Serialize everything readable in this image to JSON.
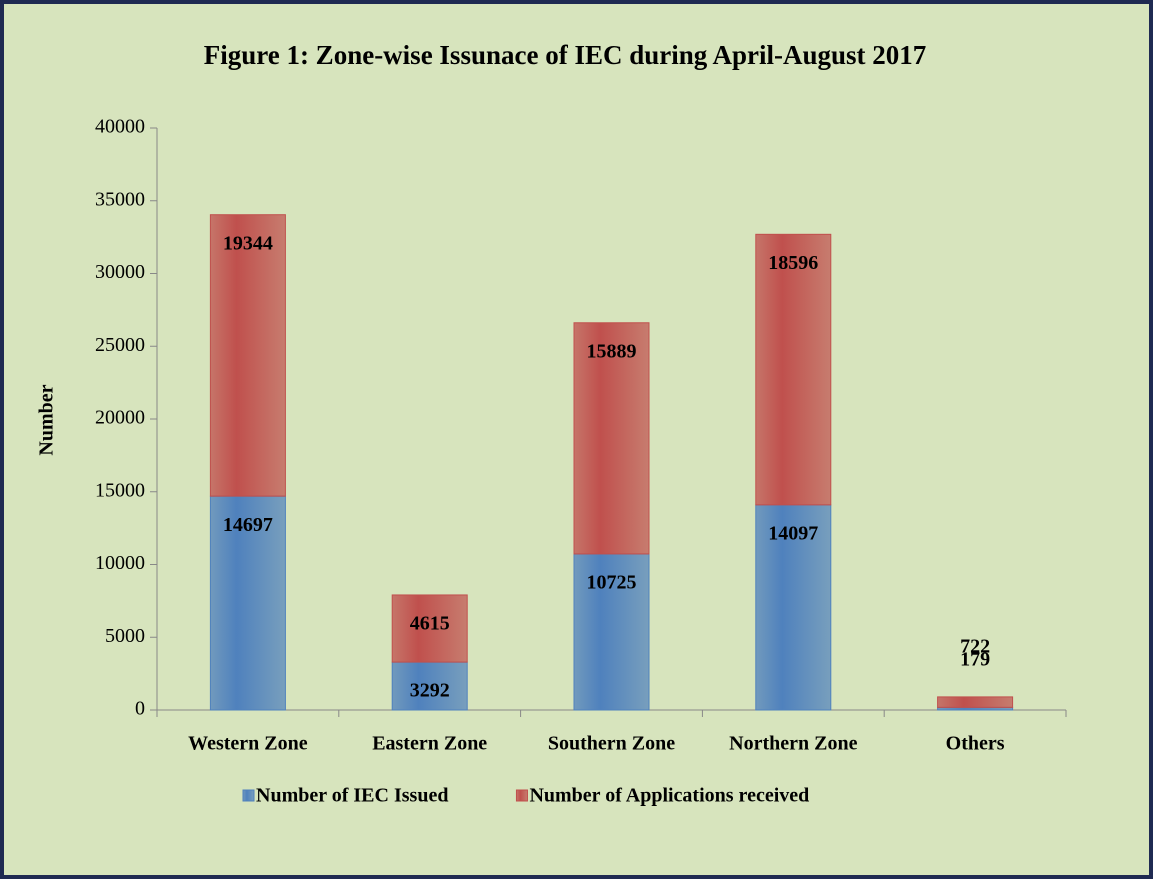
{
  "chart_data": {
    "type": "stacked_bar",
    "title": "Figure 1: Zone-wise Issunace of IEC during April-August 2017",
    "y_label": "Number",
    "categories": [
      "Western Zone",
      "Eastern Zone",
      "Southern Zone",
      "Northern Zone",
      "Others"
    ],
    "series": [
      {
        "name": "Number of IEC Issued",
        "color": "#4f81bd",
        "values": [
          14697,
          3292,
          10725,
          14097,
          179
        ]
      },
      {
        "name": "Number of Applications received",
        "color": "#c0504d",
        "values": [
          19344,
          4615,
          15889,
          18596,
          722
        ]
      }
    ],
    "ylim": [
      0,
      40000
    ],
    "yticks": [
      0,
      5000,
      10000,
      15000,
      20000,
      25000,
      30000,
      35000,
      40000
    ],
    "grid": false,
    "legend": "bottom"
  }
}
